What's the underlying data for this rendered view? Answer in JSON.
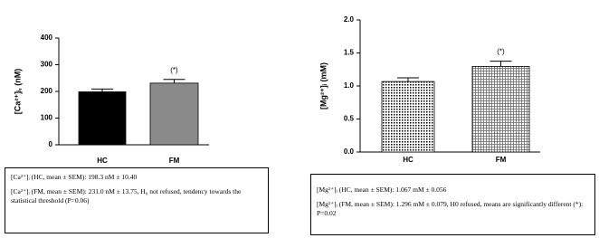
{
  "chart_data": [
    {
      "type": "bar",
      "y_label": "[Ca²⁺]ᵢ, (nM)",
      "categories": [
        "HC",
        "FM"
      ],
      "values": [
        198.3,
        231.0
      ],
      "errors": [
        10.4,
        13.75
      ],
      "colors": [
        "#000000",
        "#8a8a8a"
      ],
      "ylim": [
        0,
        400
      ],
      "yticks": [
        0,
        100,
        200,
        300,
        400
      ],
      "annotation": "(*)"
    },
    {
      "type": "bar",
      "y_label": "[Mg²⁺]ᵢ (mM)",
      "categories": [
        "HC",
        "FM"
      ],
      "values": [
        1.067,
        1.296
      ],
      "errors": [
        0.056,
        0.079
      ],
      "patterns": [
        "dots",
        "grid"
      ],
      "ylim": [
        0,
        2.0
      ],
      "yticks": [
        {
          "value": 0,
          "label": "0.0"
        },
        {
          "value": 0.5,
          "label": "0.5"
        },
        {
          "value": 1.0,
          "label": "1.0"
        },
        {
          "value": 1.5,
          "label": "1.5"
        },
        {
          "value": 2.0,
          "label": "2.0"
        }
      ],
      "annotation": "(*)"
    }
  ],
  "boxes": [
    {
      "lines": [
        "[Ca²⁺]ᵢ (HC, mean ± SEM): 198.3 nM ± 10.40",
        "[Ca²⁺]ᵢ (FM, mean ± SEM): 231.0 nM ± 13.75, H₀ not refused, tendency towards the statistical threshold (P=0.06)"
      ]
    },
    {
      "lines": [
        "[Mg²⁺]ᵢ (HC, mean ± SEM): 1.067 mM ± 0.056",
        "[Mg²⁺]ᵢ (FM, mean ± SEM): 1.296 mM ± 0.079, H0 refused, means are significantly different (*): P=0.02"
      ]
    }
  ]
}
